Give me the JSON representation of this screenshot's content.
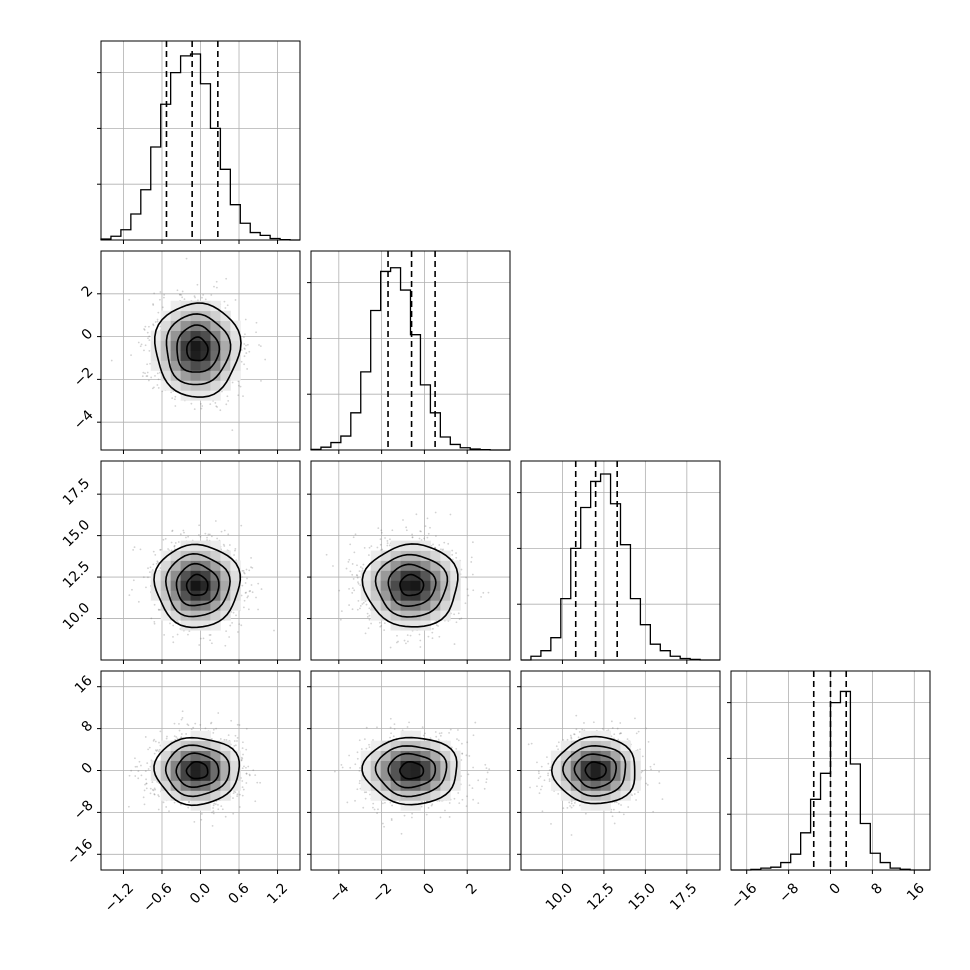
{
  "chart_data": {
    "type": "corner",
    "title": "",
    "grid": true,
    "variables": [
      {
        "name": "",
        "range": [
          -1.55,
          1.55
        ],
        "ticks": [
          "−1.2",
          "−0.6",
          "0.0",
          "0.6",
          "1.2"
        ],
        "tick_values": [
          -1.2,
          -0.6,
          0.0,
          0.6,
          1.2
        ],
        "quantiles": [
          -0.53,
          -0.13,
          0.27
        ],
        "hist_edges_start": -1.55,
        "hist_bin_width": 0.155,
        "hist_counts": [
          0.005,
          0.02,
          0.055,
          0.14,
          0.27,
          0.5,
          0.73,
          0.9,
          0.99,
          1.0,
          0.84,
          0.6,
          0.38,
          0.19,
          0.09,
          0.04,
          0.025,
          0.008,
          0.002,
          0.0
        ]
      },
      {
        "name": "",
        "range": [
          -5.3,
          4.0
        ],
        "ticks": [
          "−4",
          "−2",
          "0",
          "2"
        ],
        "tick_values": [
          -4,
          -2,
          0,
          2
        ],
        "quantiles": [
          -1.7,
          -0.6,
          0.5
        ],
        "hist_edges_start": -5.3,
        "hist_bin_width": 0.465,
        "hist_counts": [
          0.003,
          0.015,
          0.04,
          0.075,
          0.2,
          0.42,
          0.75,
          0.96,
          0.98,
          0.86,
          0.62,
          0.35,
          0.2,
          0.07,
          0.03,
          0.012,
          0.005,
          0.002,
          0.0,
          0.0
        ]
      },
      {
        "name": "",
        "range": [
          7.5,
          19.5
        ],
        "ticks": [
          "10.0",
          "12.5",
          "15.0",
          "17.5"
        ],
        "tick_values": [
          10.0,
          12.5,
          15.0,
          17.5
        ],
        "quantiles": [
          10.8,
          12.0,
          13.3
        ],
        "hist_edges_start": 7.5,
        "hist_bin_width": 0.6,
        "hist_counts": [
          0.0,
          0.02,
          0.05,
          0.12,
          0.33,
          0.6,
          0.82,
          0.96,
          1.0,
          0.84,
          0.62,
          0.33,
          0.19,
          0.085,
          0.05,
          0.02,
          0.008,
          0.003,
          0.0,
          0.0
        ]
      },
      {
        "name": "",
        "range": [
          -19,
          19
        ],
        "ticks": [
          "−16",
          "−8",
          "0",
          "8",
          "16"
        ],
        "tick_values": [
          -16,
          -8,
          0,
          8,
          16
        ],
        "quantiles": [
          -3.2,
          0.0,
          3.0
        ],
        "hist_edges_start": -19,
        "hist_bin_width": 1.9,
        "hist_counts": [
          0.0,
          0.0,
          0.003,
          0.01,
          0.015,
          0.04,
          0.085,
          0.2,
          0.38,
          0.52,
          0.9,
          0.96,
          0.57,
          0.25,
          0.09,
          0.04,
          0.01,
          0.004,
          0.0,
          0.0
        ]
      }
    ],
    "pairs": [
      {
        "x": 0,
        "y": 1,
        "center": [
          -0.05,
          -0.6
        ],
        "sigma": [
          0.33,
          1.1
        ]
      },
      {
        "x": 0,
        "y": 2,
        "center": [
          -0.05,
          12.0
        ],
        "sigma": [
          0.33,
          1.25
        ]
      },
      {
        "x": 1,
        "y": 2,
        "center": [
          -0.6,
          12.0
        ],
        "sigma": [
          1.1,
          1.25
        ]
      },
      {
        "x": 0,
        "y": 3,
        "center": [
          -0.05,
          0.0
        ],
        "sigma": [
          0.33,
          3.2
        ]
      },
      {
        "x": 1,
        "y": 3,
        "center": [
          -0.6,
          0.0
        ],
        "sigma": [
          1.1,
          3.2
        ]
      },
      {
        "x": 2,
        "y": 3,
        "center": [
          12.0,
          0.0
        ],
        "sigma": [
          1.25,
          3.2
        ]
      }
    ],
    "contour_levels_sigma": [
      0.5,
      1.0,
      1.5,
      2.0
    ],
    "colors": {
      "line": "#000000",
      "grid": "#b0b0b0",
      "points": "#7f7f7f"
    }
  }
}
